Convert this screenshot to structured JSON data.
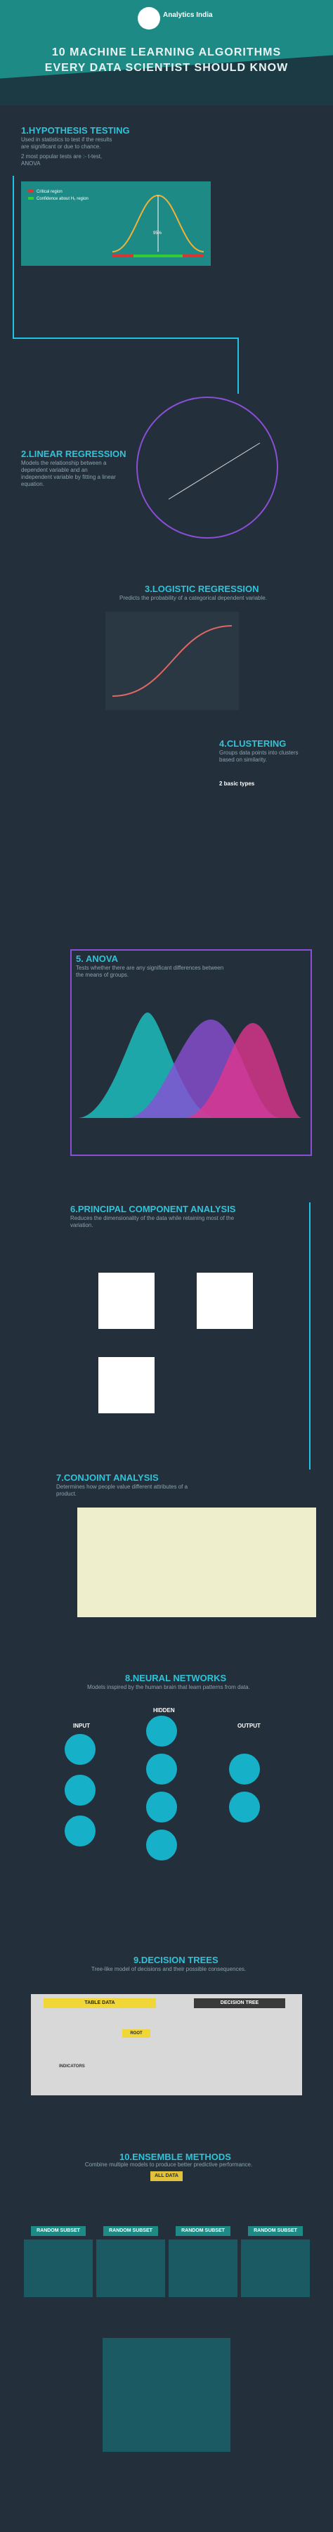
{
  "brand": {
    "name": "Analytics India"
  },
  "header": {
    "title_line1": "10 MACHINE LEARNING ALGORITHMS",
    "title_line2": "EVERY DATA SCIENTIST SHOULD KNOW"
  },
  "sections": [
    {
      "title": "1.HYPOTHESIS TESTING",
      "desc": "Used in statistics to test if the results are significant or due to chance.",
      "sub": "2 most popular tests are :- t-test, ANOVA"
    },
    {
      "title": "2.LINEAR REGRESSION",
      "desc": "Models the relationship between a dependent variable and an independent variable by fitting a linear equation."
    },
    {
      "title": "3.LOGISTIC REGRESSION",
      "desc": "Predicts the probability of a categorical dependent variable."
    },
    {
      "title": "4.CLUSTERING",
      "desc": "Groups data points into clusters based on similarity.",
      "sub": "2 basic types"
    },
    {
      "title": "5. ANOVA",
      "desc": "Tests whether there are any significant differences between the means of groups."
    },
    {
      "title": "6.PRINCIPAL COMPONENT ANALYSIS",
      "desc": "Reduces the dimensionality of the data while retaining most of the variation."
    },
    {
      "title": "7.CONJOINT ANALYSIS",
      "desc": "Determines how people value different attributes of a product."
    },
    {
      "title": "8.NEURAL NETWORKS",
      "desc": "Models inspired by the human brain that learn patterns from data."
    },
    {
      "title": "9.DECISION TREES",
      "desc": "Tree-like model of decisions and their possible consequences."
    },
    {
      "title": "10.ENSEMBLE METHODS",
      "desc": "Combine multiple models to produce better predictive performance."
    }
  ],
  "hypothesis": {
    "legend": [
      "Critical region",
      "Confidence about H₀ region"
    ],
    "center_label": "95%"
  },
  "neural": {
    "input_label": "INPUT",
    "hidden_label": "HIDDEN",
    "output_label": "OUTPUT"
  },
  "decision": {
    "table_label": "TABLE DATA",
    "tree_label": "DECISION TREE",
    "indicators_label": "INDICATORS",
    "root_label": "ROOT"
  },
  "ensemble": {
    "all_label": "ALL DATA",
    "subset_labels": [
      "RANDOM SUBSET",
      "RANDOM SUBSET",
      "RANDOM SUBSET",
      "RANDOM SUBSET"
    ]
  },
  "colors": {
    "bg": "#232f3a",
    "teal": "#1e8a86",
    "cyan": "#2fc3d9",
    "purple": "#8a4fd6",
    "pink": "#e0368f",
    "yellow": "#e2c23b"
  }
}
